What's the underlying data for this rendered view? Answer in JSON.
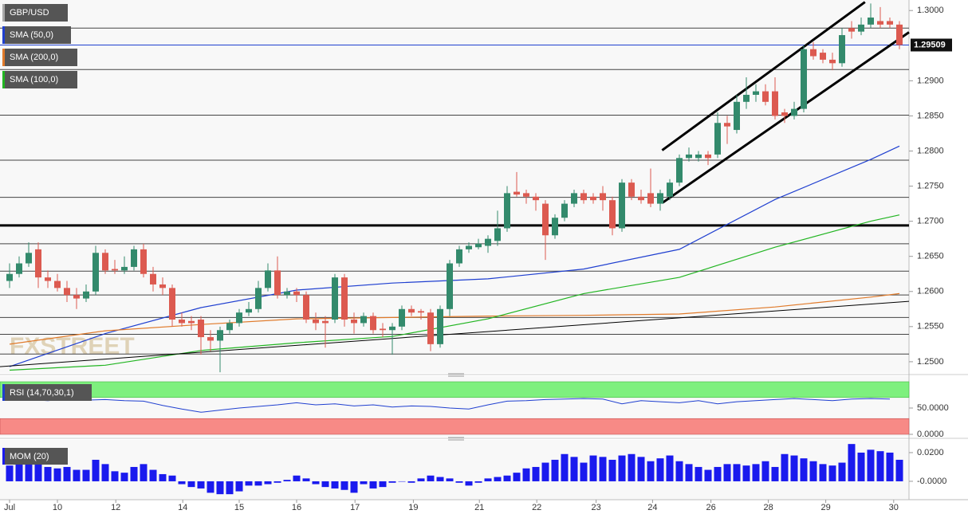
{
  "chart_data": {
    "type": "candlestick",
    "title": "GBP/USD",
    "watermark": "FXSTREET",
    "up_color": "#338a6c",
    "down_color": "#dc5a50",
    "xlim": [
      -1,
      94
    ],
    "ylim": [
      1.2484,
      1.3015
    ],
    "xticks": [
      {
        "value": 0,
        "label": "Jul"
      },
      {
        "value": 5,
        "label": "10"
      },
      {
        "value": 11.1,
        "label": "12"
      },
      {
        "value": 18.1,
        "label": "14"
      },
      {
        "value": 24,
        "label": "15"
      },
      {
        "value": 30,
        "label": "16"
      },
      {
        "value": 36.1,
        "label": "17"
      },
      {
        "value": 42.2,
        "label": "19"
      },
      {
        "value": 49.1,
        "label": "21"
      },
      {
        "value": 55.1,
        "label": "22"
      },
      {
        "value": 61.3,
        "label": "23"
      },
      {
        "value": 67.2,
        "label": "24"
      },
      {
        "value": 73.3,
        "label": "26"
      },
      {
        "value": 79.3,
        "label": "28"
      },
      {
        "value": 85.3,
        "label": "29"
      },
      {
        "value": 92.4,
        "label": "30"
      }
    ],
    "yticks": [
      {
        "value": 1.3,
        "label": "1.3000"
      },
      {
        "value": 1.29,
        "label": "1.2900"
      },
      {
        "value": 1.285,
        "label": "1.2850"
      },
      {
        "value": 1.28,
        "label": "1.2800"
      },
      {
        "value": 1.275,
        "label": "1.2750"
      },
      {
        "value": 1.27,
        "label": "1.2700"
      },
      {
        "value": 1.265,
        "label": "1.2650"
      },
      {
        "value": 1.26,
        "label": "1.2600"
      },
      {
        "value": 1.255,
        "label": "1.2550"
      },
      {
        "value": 1.25,
        "label": "1.2500"
      }
    ],
    "last_price": {
      "value": 1.29509,
      "label": "1.29509"
    },
    "ohlc": [
      [
        1.2615,
        1.264,
        1.2605,
        1.2625
      ],
      [
        1.2625,
        1.265,
        1.262,
        1.264
      ],
      [
        1.264,
        1.267,
        1.2635,
        1.2655
      ],
      [
        1.266,
        1.267,
        1.2605,
        1.262
      ],
      [
        1.262,
        1.263,
        1.2605,
        1.2615
      ],
      [
        1.2615,
        1.2625,
        1.26,
        1.2605
      ],
      [
        1.2605,
        1.2615,
        1.2585,
        1.2595
      ],
      [
        1.2595,
        1.2605,
        1.2575,
        1.259
      ],
      [
        1.259,
        1.261,
        1.2585,
        1.26
      ],
      [
        1.26,
        1.2665,
        1.2595,
        1.2655
      ],
      [
        1.2655,
        1.266,
        1.2625,
        1.263
      ],
      [
        1.2632,
        1.2645,
        1.2625,
        1.263
      ],
      [
        1.263,
        1.265,
        1.2625,
        1.2635
      ],
      [
        1.2635,
        1.2665,
        1.263,
        1.266
      ],
      [
        1.266,
        1.2668,
        1.262,
        1.2625
      ],
      [
        1.2625,
        1.2635,
        1.26,
        1.261
      ],
      [
        1.261,
        1.262,
        1.2595,
        1.2605
      ],
      [
        1.2605,
        1.261,
        1.255,
        1.256
      ],
      [
        1.256,
        1.257,
        1.255,
        1.2555
      ],
      [
        1.2558,
        1.2565,
        1.2545,
        1.2555
      ],
      [
        1.256,
        1.2565,
        1.251,
        1.2535
      ],
      [
        1.2535,
        1.2545,
        1.2515,
        1.253
      ],
      [
        1.253,
        1.255,
        1.2485,
        1.2545
      ],
      [
        1.2545,
        1.256,
        1.254,
        1.2555
      ],
      [
        1.2555,
        1.2575,
        1.255,
        1.257
      ],
      [
        1.257,
        1.2585,
        1.2565,
        1.2575
      ],
      [
        1.2575,
        1.2615,
        1.257,
        1.2605
      ],
      [
        1.2605,
        1.264,
        1.26,
        1.263
      ],
      [
        1.263,
        1.265,
        1.259,
        1.2595
      ],
      [
        1.2595,
        1.2605,
        1.259,
        1.26
      ],
      [
        1.26,
        1.2605,
        1.2585,
        1.2595
      ],
      [
        1.2595,
        1.26,
        1.2555,
        1.256
      ],
      [
        1.256,
        1.257,
        1.2545,
        1.2555
      ],
      [
        1.2558,
        1.2565,
        1.252,
        1.2555
      ],
      [
        1.256,
        1.2625,
        1.2555,
        1.262
      ],
      [
        1.262,
        1.2625,
        1.255,
        1.256
      ],
      [
        1.256,
        1.257,
        1.254,
        1.2555
      ],
      [
        1.2555,
        1.257,
        1.255,
        1.2565
      ],
      [
        1.2565,
        1.257,
        1.254,
        1.2545
      ],
      [
        1.2547,
        1.2555,
        1.2535,
        1.2545
      ],
      [
        1.2545,
        1.2555,
        1.251,
        1.255
      ],
      [
        1.255,
        1.258,
        1.2545,
        1.2575
      ],
      [
        1.2575,
        1.258,
        1.2565,
        1.257
      ],
      [
        1.2572,
        1.2575,
        1.256,
        1.257
      ],
      [
        1.257,
        1.2575,
        1.2515,
        1.2525
      ],
      [
        1.2525,
        1.258,
        1.252,
        1.2575
      ],
      [
        1.2575,
        1.2645,
        1.2565,
        1.264
      ],
      [
        1.264,
        1.2665,
        1.2635,
        1.266
      ],
      [
        1.266,
        1.267,
        1.2655,
        1.2665
      ],
      [
        1.2663,
        1.2675,
        1.266,
        1.2668
      ],
      [
        1.2665,
        1.268,
        1.2655,
        1.2675
      ],
      [
        1.2672,
        1.2715,
        1.2665,
        1.269
      ],
      [
        1.269,
        1.275,
        1.2685,
        1.274
      ],
      [
        1.2742,
        1.277,
        1.2735,
        1.2738
      ],
      [
        1.274,
        1.2745,
        1.2725,
        1.2735
      ],
      [
        1.2735,
        1.274,
        1.2715,
        1.273
      ],
      [
        1.2725,
        1.273,
        1.2645,
        1.268
      ],
      [
        1.268,
        1.271,
        1.2675,
        1.2705
      ],
      [
        1.2705,
        1.273,
        1.27,
        1.2725
      ],
      [
        1.2725,
        1.2745,
        1.272,
        1.274
      ],
      [
        1.274,
        1.2745,
        1.2725,
        1.273
      ],
      [
        1.2735,
        1.274,
        1.2725,
        1.273
      ],
      [
        1.274,
        1.275,
        1.2715,
        1.273
      ],
      [
        1.273,
        1.2735,
        1.268,
        1.269
      ],
      [
        1.269,
        1.276,
        1.2685,
        1.2755
      ],
      [
        1.2755,
        1.276,
        1.273,
        1.2735
      ],
      [
        1.2735,
        1.2745,
        1.2725,
        1.273
      ],
      [
        1.274,
        1.2775,
        1.272,
        1.2725
      ],
      [
        1.2725,
        1.2745,
        1.2715,
        1.274
      ],
      [
        1.2735,
        1.276,
        1.273,
        1.2755
      ],
      [
        1.2755,
        1.2795,
        1.275,
        1.279
      ],
      [
        1.279,
        1.2805,
        1.2785,
        1.2795
      ],
      [
        1.279,
        1.28,
        1.2785,
        1.2795
      ],
      [
        1.2795,
        1.28,
        1.278,
        1.279
      ],
      [
        1.2795,
        1.2855,
        1.279,
        1.284
      ],
      [
        1.284,
        1.285,
        1.281,
        1.2835
      ],
      [
        1.283,
        1.288,
        1.2825,
        1.287
      ],
      [
        1.287,
        1.2905,
        1.286,
        1.288
      ],
      [
        1.288,
        1.2895,
        1.287,
        1.2885
      ],
      [
        1.2885,
        1.2895,
        1.2865,
        1.287
      ],
      [
        1.2885,
        1.2905,
        1.2845,
        1.285
      ],
      [
        1.2855,
        1.286,
        1.284,
        1.285
      ],
      [
        1.285,
        1.287,
        1.2845,
        1.286
      ],
      [
        1.286,
        1.295,
        1.2855,
        1.2945
      ],
      [
        1.2945,
        1.2955,
        1.293,
        1.2935
      ],
      [
        1.294,
        1.2945,
        1.2925,
        1.293
      ],
      [
        1.293,
        1.294,
        1.2915,
        1.2925
      ],
      [
        1.2925,
        1.2975,
        1.292,
        1.2965
      ],
      [
        1.2975,
        1.2985,
        1.296,
        1.297
      ],
      [
        1.297,
        1.299,
        1.2965,
        1.298
      ],
      [
        1.298,
        1.301,
        1.2975,
        1.299
      ],
      [
        1.2985,
        1.3005,
        1.2975,
        1.298
      ],
      [
        1.2985,
        1.299,
        1.2975,
        1.298
      ],
      [
        1.298,
        1.2985,
        1.2945,
        1.2951
      ]
    ],
    "series": [
      {
        "name": "SMA (50,0)",
        "color": "#1f3fd0",
        "x": [
          0,
          10,
          20,
          30,
          40,
          50,
          60,
          70,
          80,
          90,
          93
        ],
        "values": [
          1.2493,
          1.254,
          1.2577,
          1.2602,
          1.2612,
          1.2618,
          1.2632,
          1.266,
          1.2731,
          1.2788,
          1.2807
        ]
      },
      {
        "name": "SMA (200,0)",
        "color": "#e07a2a",
        "x": [
          0,
          10,
          20,
          30,
          40,
          50,
          60,
          70,
          80,
          90,
          93
        ],
        "values": [
          1.2525,
          1.2544,
          1.2553,
          1.2561,
          1.2563,
          1.2565,
          1.2566,
          1.2568,
          1.2578,
          1.2592,
          1.2597
        ]
      },
      {
        "name": "SMA (100,0)",
        "color": "#22b522",
        "x": [
          0,
          10,
          20,
          30,
          40,
          50,
          60,
          70,
          80,
          90,
          93
        ],
        "values": [
          1.2488,
          1.2495,
          1.2516,
          1.2527,
          1.2536,
          1.2561,
          1.2597,
          1.262,
          1.2663,
          1.27,
          1.2709
        ]
      }
    ],
    "trendlines": [
      {
        "x": [
          68.2,
          89.4
        ],
        "values": [
          1.2801,
          1.3012
        ]
      },
      {
        "x": [
          68.2,
          94
        ],
        "values": [
          1.2726,
          1.2969
        ]
      },
      {
        "x": [
          -1,
          94
        ],
        "values": [
          1.2493,
          1.2586
        ]
      }
    ],
    "levels": [
      1.2975,
      1.2916,
      1.2851,
      1.2787,
      1.2734,
      1.2668,
      1.2629,
      1.2595,
      1.2563,
      1.2539,
      1.2511
    ],
    "key_level": 1.2694,
    "rsi": {
      "name": "RSI (14,70,30,1)",
      "color": "#1f3fd0",
      "ylim": [
        0,
        100
      ],
      "overbought": 70,
      "oversold": 30,
      "yticks": [
        {
          "value": 50,
          "label": "50.0000"
        },
        {
          "value": 0,
          "label": "0.0000"
        }
      ],
      "x": [
        0,
        2,
        4,
        6,
        8,
        10,
        12,
        14,
        16,
        18,
        20,
        22,
        24,
        26,
        28,
        30,
        32,
        34,
        36,
        38,
        40,
        42,
        44,
        46,
        48,
        50,
        52,
        54,
        56,
        58,
        60,
        62,
        64,
        66,
        68,
        70,
        72,
        74,
        76,
        78,
        80,
        82,
        84,
        86,
        88,
        90,
        92
      ],
      "values": [
        68,
        66,
        64,
        67,
        65,
        66,
        64,
        63,
        55,
        48,
        42,
        46,
        50,
        53,
        56,
        60,
        56,
        58,
        54,
        56,
        52,
        54,
        53,
        50,
        48,
        56,
        63,
        64,
        66,
        67,
        68,
        67,
        58,
        64,
        62,
        60,
        64,
        58,
        62,
        64,
        66,
        68,
        66,
        64,
        67,
        68,
        67
      ]
    },
    "mom": {
      "name": "MOM (20)",
      "color": "#1a1aee",
      "ylim": [
        -0.0117,
        0.0272
      ],
      "yticks": [
        {
          "value": 0.02,
          "label": "0.0200"
        },
        {
          "value": 0,
          "label": "-0.0000"
        }
      ],
      "values": [
        0.011,
        0.012,
        0.013,
        0.013,
        0.01,
        0.009,
        0.01,
        0.008,
        0.008,
        0.015,
        0.012,
        0.007,
        0.006,
        0.01,
        0.012,
        0.008,
        0.005,
        0.004,
        -0.002,
        -0.004,
        -0.005,
        -0.008,
        -0.009,
        -0.009,
        -0.007,
        -0.003,
        -0.003,
        -0.002,
        -0.001,
        0.001,
        0.004,
        0.002,
        -0.002,
        -0.004,
        -0.005,
        -0.006,
        -0.008,
        -0.002,
        -0.005,
        -0.004,
        -0.001,
        0,
        -0.001,
        0.002,
        0.004,
        0.003,
        0.002,
        -0.001,
        -0.003,
        -0.001,
        0.002,
        0.003,
        0.004,
        0.006,
        0.009,
        0.01,
        0.013,
        0.015,
        0.019,
        0.017,
        0.013,
        0.018,
        0.017,
        0.015,
        0.018,
        0.019,
        0.017,
        0.014,
        0.016,
        0.018,
        0.014,
        0.012,
        0.01,
        0.008,
        0.01,
        0.012,
        0.012,
        0.011,
        0.012,
        0.014,
        0.01,
        0.019,
        0.018,
        0.016,
        0.014,
        0.012,
        0.011,
        0.013,
        0.026,
        0.02,
        0.022,
        0.021,
        0.02,
        0.015
      ]
    }
  }
}
